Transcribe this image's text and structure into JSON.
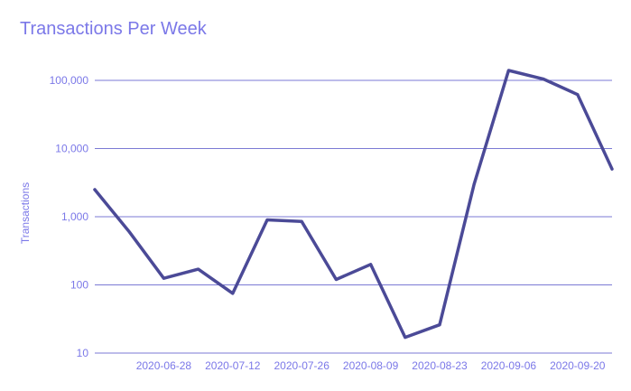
{
  "chart_data": {
    "type": "line",
    "title": "Transactions Per Week",
    "xlabel": "",
    "ylabel": "Transactions",
    "yscale": "log",
    "ylim": [
      10,
      100000
    ],
    "yticks": [
      {
        "value": 10,
        "label": "10"
      },
      {
        "value": 100,
        "label": "100"
      },
      {
        "value": 1000,
        "label": "1,000"
      },
      {
        "value": 10000,
        "label": "10,000"
      },
      {
        "value": 100000,
        "label": "100,000"
      }
    ],
    "xticks": [
      "2020-06-28",
      "2020-07-12",
      "2020-07-26",
      "2020-08-09",
      "2020-08-23",
      "2020-09-06",
      "2020-09-20"
    ],
    "grid": true,
    "legend": "none",
    "x": [
      "2020-06-14",
      "2020-06-21",
      "2020-06-28",
      "2020-07-05",
      "2020-07-12",
      "2020-07-19",
      "2020-07-26",
      "2020-08-02",
      "2020-08-09",
      "2020-08-16",
      "2020-08-23",
      "2020-08-30",
      "2020-09-06",
      "2020-09-13",
      "2020-09-20",
      "2020-09-27"
    ],
    "values": [
      2500,
      600,
      125,
      170,
      75,
      900,
      850,
      120,
      200,
      17,
      26,
      3000,
      140000,
      105000,
      62000,
      5000
    ],
    "colors": {
      "line": "#4b4a97",
      "grid": "#7b7ad4",
      "axis_text": "#7b78e8",
      "title": "#7b78e8"
    }
  }
}
